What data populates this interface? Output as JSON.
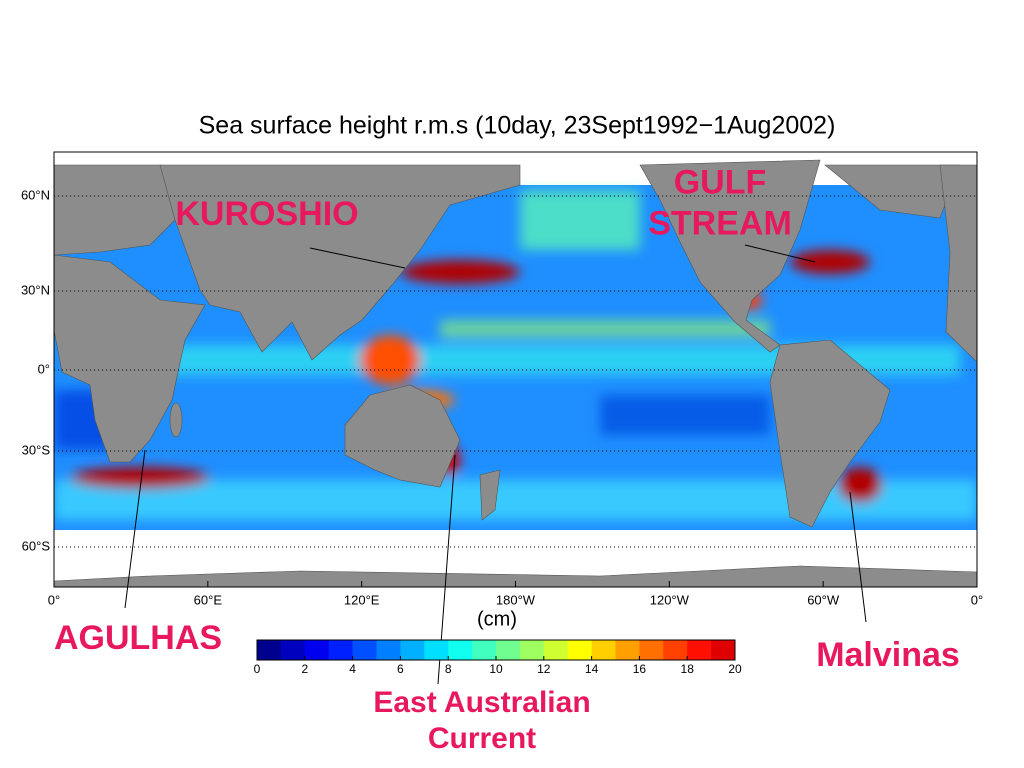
{
  "map": {
    "title": "Sea surface height r.m.s (10day, 23Sept1992−1Aug2002)",
    "lat_ticks": [
      {
        "value": 60,
        "label": "60°N"
      },
      {
        "value": 30,
        "label": "30°N"
      },
      {
        "value": 0,
        "label": "0°"
      },
      {
        "value": -30,
        "label": "30°S"
      },
      {
        "value": -60,
        "label": "60°S"
      }
    ],
    "lon_ticks": [
      {
        "value": 0,
        "label": "0°"
      },
      {
        "value": 60,
        "label": "60°E"
      },
      {
        "value": 120,
        "label": "120°E"
      },
      {
        "value": 180,
        "label": "180°W"
      },
      {
        "value": 240,
        "label": "120°W"
      },
      {
        "value": 300,
        "label": "60°W"
      },
      {
        "value": 360,
        "label": "0°"
      }
    ],
    "grid": true,
    "colorbar": {
      "unit": "(cm)",
      "clim": [
        0,
        20
      ],
      "ticks": [
        0,
        2,
        4,
        6,
        8,
        10,
        12,
        14,
        16,
        18,
        20
      ],
      "colors": [
        "#00008f",
        "#0000bf",
        "#0000ef",
        "#0020ff",
        "#0050ff",
        "#0080ff",
        "#00b0ff",
        "#00dfff",
        "#10ffef",
        "#40ffbf",
        "#70ff8f",
        "#9fff60",
        "#cfff30",
        "#ffff00",
        "#ffcf00",
        "#ff9f00",
        "#ff7000",
        "#ff4000",
        "#ff1000",
        "#df0000"
      ]
    },
    "annotations": [
      "KUROSHIO",
      "GULF STREAM",
      "AGULHAS",
      "Malvinas",
      "East Australian Current"
    ]
  }
}
